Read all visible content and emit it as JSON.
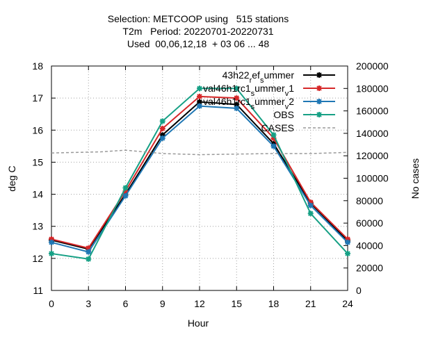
{
  "chart_data": {
    "type": "line",
    "title": [
      "Selection: METCOOP using   515 stations",
      "T2m   Period: 20220701-20220731",
      "Used  00,06,12,18  + 03 06 ... 48"
    ],
    "xlabel": "Hour",
    "ylabel": "deg C",
    "y2label": "No cases",
    "x": [
      0,
      3,
      6,
      9,
      12,
      15,
      18,
      21,
      24
    ],
    "xlim": [
      0,
      24
    ],
    "ylim": [
      11,
      18
    ],
    "y2lim": [
      0,
      200000
    ],
    "xticks": [
      "0",
      "3",
      "6",
      "9",
      "12",
      "15",
      "18",
      "21",
      "24"
    ],
    "yticks": [
      "11",
      "12",
      "13",
      "14",
      "15",
      "16",
      "17",
      "18"
    ],
    "y2ticks": [
      "0",
      "20000",
      "40000",
      "60000",
      "80000",
      "100000",
      "120000",
      "140000",
      "160000",
      "180000",
      "200000"
    ],
    "grid": true,
    "legend_position": "top-right",
    "series": [
      {
        "name": "43h22_ref_summer",
        "label_parts": [
          "43h22",
          "r",
          "ef",
          "s",
          "ummer"
        ],
        "color": "#000000",
        "axis": "y1",
        "style": "solid",
        "marker": "star",
        "values": [
          12.57,
          12.29,
          14.0,
          15.85,
          16.88,
          16.8,
          15.58,
          13.72,
          12.55
        ]
      },
      {
        "name": "val46h1rc1_summer_v1",
        "label_parts": [
          "val46h1rc1",
          "s",
          "ummer",
          "v",
          "1"
        ],
        "color": "#d62728",
        "axis": "y1",
        "style": "solid",
        "marker": "star",
        "values": [
          12.6,
          12.32,
          14.1,
          16.05,
          17.05,
          17.0,
          15.75,
          13.75,
          12.6
        ]
      },
      {
        "name": "val46h1rc1_summer_v2",
        "label_parts": [
          "val46h1rc1",
          "s",
          "ummer",
          "v",
          "2"
        ],
        "color": "#1f77b4",
        "axis": "y1",
        "style": "solid",
        "marker": "star",
        "values": [
          12.5,
          12.2,
          13.95,
          15.75,
          16.75,
          16.68,
          15.5,
          13.65,
          12.5
        ]
      },
      {
        "name": "OBS",
        "label_parts": [
          "OBS"
        ],
        "color": "#16a085",
        "axis": "y1",
        "style": "solid",
        "marker": "star",
        "values": [
          12.15,
          11.98,
          14.2,
          16.28,
          17.3,
          17.3,
          15.85,
          13.4,
          12.15
        ]
      },
      {
        "name": "CASES",
        "label_parts": [
          "CASES"
        ],
        "color": "#999999",
        "axis": "y2",
        "style": "dashed",
        "marker": "none",
        "x": [
          0,
          2,
          4,
          6,
          7,
          9,
          12,
          15,
          18,
          21,
          24
        ],
        "values": [
          122500,
          123000,
          123500,
          125000,
          124000,
          122000,
          121000,
          121500,
          122000,
          122000,
          123000
        ]
      }
    ]
  }
}
